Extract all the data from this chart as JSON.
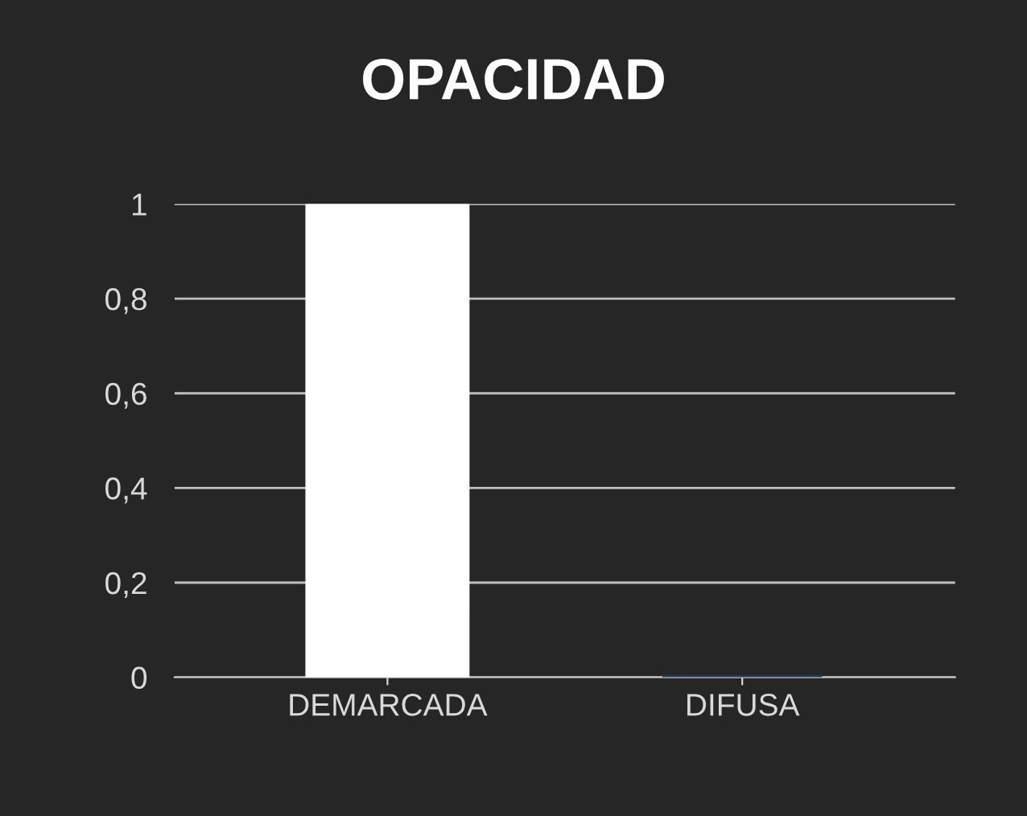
{
  "chart_data": {
    "type": "bar",
    "title": "OPACIDAD",
    "categories": [
      "DEMARCADA",
      "DIFUSA"
    ],
    "values": [
      1,
      0
    ],
    "colors": [
      "#ffffff",
      "#1f3a5a"
    ],
    "ylim": [
      0,
      1
    ],
    "yticks": [
      0,
      {
        "value": 0.2,
        "label": "0,2"
      },
      {
        "value": 0.4,
        "label": "0,4"
      },
      {
        "value": 0.6,
        "label": "0,6"
      },
      {
        "value": 0.8,
        "label": "0,8"
      },
      1
    ],
    "grid": "y"
  }
}
